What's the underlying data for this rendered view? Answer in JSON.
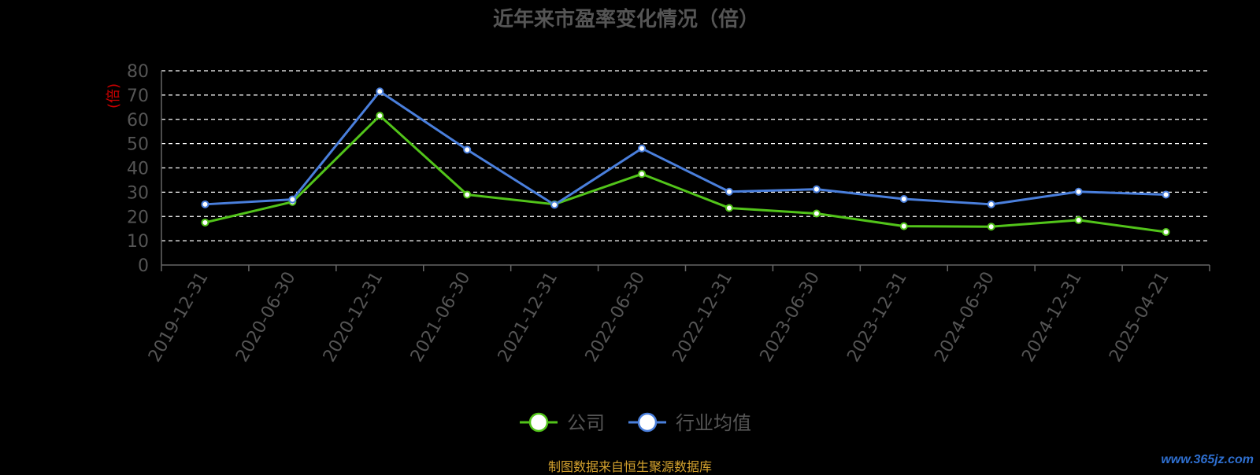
{
  "chart_data": {
    "type": "line",
    "title": "近年来市盈率变化情况（倍）",
    "ylabel": "(倍)",
    "ylim": [
      0,
      80
    ],
    "yticks": [
      0,
      10,
      20,
      30,
      40,
      50,
      60,
      70,
      80
    ],
    "grid": true,
    "legend_position": "bottom",
    "categories": [
      "2019-12-31",
      "2020-06-30",
      "2020-12-31",
      "2021-06-30",
      "2021-12-31",
      "2022-06-30",
      "2022-12-31",
      "2023-06-30",
      "2023-12-31",
      "2024-06-30",
      "2024-12-31",
      "2025-04-21"
    ],
    "series": [
      {
        "name": "公司",
        "color": "#52c41a",
        "values": [
          17.5,
          26,
          61.5,
          29,
          25,
          37.5,
          23.5,
          21.2,
          16,
          15.8,
          18.5,
          13.6
        ]
      },
      {
        "name": "行业均值",
        "color": "#4a7fdc",
        "values": [
          25,
          27,
          71.5,
          47.5,
          24.8,
          48,
          30.2,
          31.2,
          27.2,
          25,
          30.2,
          29
        ]
      }
    ]
  },
  "footer": {
    "source": "制图数据来自恒生聚源数据库",
    "watermark": "www.365jz.com"
  }
}
